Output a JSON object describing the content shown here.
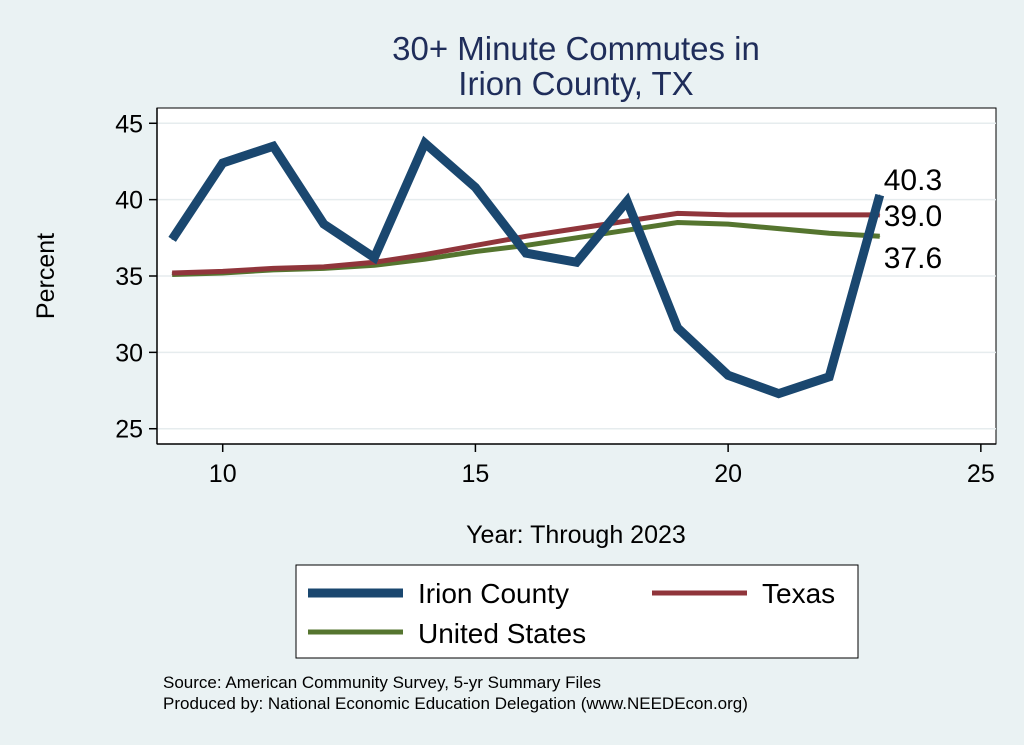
{
  "chart_data": {
    "type": "line",
    "title_lines": [
      "30+ Minute Commutes in",
      "Irion County, TX"
    ],
    "xlabel": "Year: Through 2023",
    "ylabel": "Percent",
    "xlim": [
      8.7,
      25.3
    ],
    "ylim": [
      24,
      46
    ],
    "x_ticks": [
      10,
      15,
      20,
      25
    ],
    "y_ticks": [
      25,
      30,
      35,
      40,
      45
    ],
    "grid": true,
    "series": [
      {
        "name": "Irion County",
        "color": "#1a476f",
        "stroke": 9,
        "x": [
          9,
          10,
          11,
          12,
          13,
          14,
          15,
          16,
          17,
          18,
          19,
          20,
          21,
          22,
          23
        ],
        "values": [
          37.4,
          42.4,
          43.5,
          38.4,
          36.2,
          43.7,
          40.8,
          36.5,
          35.9,
          39.9,
          31.6,
          28.5,
          27.3,
          28.4,
          40.3
        ],
        "end_label": "40.3"
      },
      {
        "name": "Texas",
        "color": "#90353b",
        "stroke": 5,
        "x": [
          9,
          10,
          11,
          12,
          13,
          14,
          15,
          16,
          17,
          18,
          19,
          20,
          21,
          22,
          23
        ],
        "values": [
          35.2,
          35.3,
          35.5,
          35.6,
          35.9,
          36.4,
          37.0,
          37.6,
          38.1,
          38.6,
          39.1,
          39.0,
          39.0,
          39.0,
          39.0
        ],
        "end_label": "39.0"
      },
      {
        "name": "United States",
        "color": "#55752f",
        "stroke": 5,
        "x": [
          9,
          10,
          11,
          12,
          13,
          14,
          15,
          16,
          17,
          18,
          19,
          20,
          21,
          22,
          23
        ],
        "values": [
          35.1,
          35.2,
          35.4,
          35.5,
          35.7,
          36.1,
          36.6,
          37.0,
          37.5,
          38.0,
          38.5,
          38.4,
          38.1,
          37.8,
          37.6
        ],
        "end_label": "37.6"
      }
    ],
    "legend": {
      "position": "bottom",
      "entries": [
        "Irion County",
        "Texas",
        "United States"
      ]
    },
    "source_lines": [
      "Source: American Community Survey, 5-yr Summary Files",
      "Produced by: National Economic Education Delegation (www.NEEDEcon.org)"
    ]
  }
}
